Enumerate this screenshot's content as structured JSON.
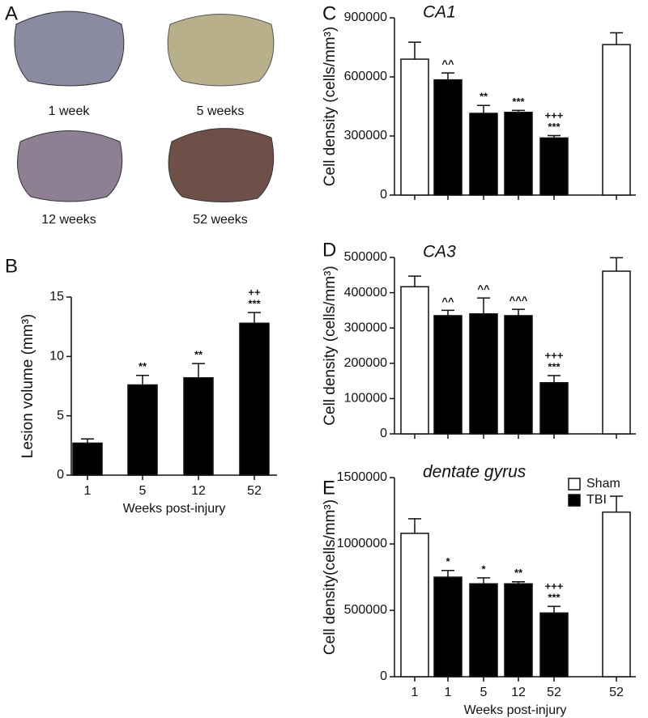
{
  "panel_a": {
    "label": "A",
    "captions": [
      "1 week",
      "5 weeks",
      "12 weeks",
      "52 weeks"
    ]
  },
  "chart_data": [
    {
      "type": "bar",
      "label": "B",
      "ylabel": "Lesion volume (mm³)",
      "xlabel": "Weeks post-injury",
      "categories": [
        "1",
        "5",
        "12",
        "52"
      ],
      "series": [
        {
          "color": "#000000",
          "values": [
            2.7,
            7.6,
            8.2,
            12.8
          ],
          "errors": [
            0.35,
            0.8,
            1.2,
            0.9
          ]
        }
      ],
      "significance": [
        [],
        [
          "**"
        ],
        [
          "**"
        ],
        [
          "++",
          "***"
        ]
      ],
      "ylim": [
        0,
        15
      ],
      "yticks": [
        0,
        5,
        10,
        15
      ]
    },
    {
      "type": "bar",
      "label": "C",
      "title": "CA1",
      "ylabel": "Cell density (cells/mm³)",
      "categories": [
        null,
        null,
        null,
        null,
        null,
        null
      ],
      "series": [
        {
          "name": "Sham",
          "color": "#ffffff",
          "values": [
            690000,
            null,
            null,
            null,
            null,
            764000
          ],
          "errors": [
            86000,
            null,
            null,
            null,
            null,
            60000
          ]
        },
        {
          "name": "TBI",
          "color": "#000000",
          "values": [
            null,
            585000,
            415000,
            420000,
            290000,
            null
          ],
          "errors": [
            null,
            35000,
            40000,
            10000,
            12000,
            null
          ]
        }
      ],
      "significance": [
        [],
        [
          "^^"
        ],
        [
          "**"
        ],
        [
          "***"
        ],
        [
          "+++",
          "***"
        ],
        []
      ],
      "ylim": [
        0,
        900000
      ],
      "yticks": [
        0,
        300000,
        600000,
        900000
      ]
    },
    {
      "type": "bar",
      "label": "D",
      "title": "CA3",
      "ylabel": "Cell density (cells/mm³)",
      "categories": [
        null,
        null,
        null,
        null,
        null,
        null
      ],
      "series": [
        {
          "name": "Sham",
          "color": "#ffffff",
          "values": [
            417000,
            null,
            null,
            null,
            null,
            461000
          ],
          "errors": [
            30000,
            null,
            null,
            null,
            null,
            38000
          ]
        },
        {
          "name": "TBI",
          "color": "#000000",
          "values": [
            null,
            335000,
            340000,
            335000,
            145000,
            null
          ],
          "errors": [
            null,
            15000,
            45000,
            18000,
            20000,
            null
          ]
        }
      ],
      "significance": [
        [],
        [
          "^^"
        ],
        [
          "^^"
        ],
        [
          "^^^"
        ],
        [
          "+++",
          "***"
        ],
        []
      ],
      "ylim": [
        0,
        500000
      ],
      "yticks": [
        0,
        100000,
        200000,
        300000,
        400000,
        500000
      ]
    },
    {
      "type": "bar",
      "label": "E",
      "title": "dentate gyrus",
      "ylabel": "Cell density(cells/mm³)",
      "xlabel": "Weeks post-injury",
      "categories": [
        "1",
        "1",
        "5",
        "12",
        "52",
        "52"
      ],
      "series": [
        {
          "name": "Sham",
          "color": "#ffffff",
          "values": [
            1080000,
            null,
            null,
            null,
            null,
            1240000
          ],
          "errors": [
            110000,
            null,
            null,
            null,
            null,
            120000
          ]
        },
        {
          "name": "TBI",
          "color": "#000000",
          "values": [
            null,
            750000,
            700000,
            700000,
            480000,
            null
          ],
          "errors": [
            null,
            50000,
            45000,
            15000,
            50000,
            null
          ]
        }
      ],
      "significance": [
        [],
        [
          "*"
        ],
        [
          "*"
        ],
        [
          "**"
        ],
        [
          "+++",
          "***"
        ],
        []
      ],
      "ylim": [
        0,
        1500000
      ],
      "yticks": [
        0,
        500000,
        1000000,
        1500000
      ],
      "legend": "upper right"
    }
  ]
}
